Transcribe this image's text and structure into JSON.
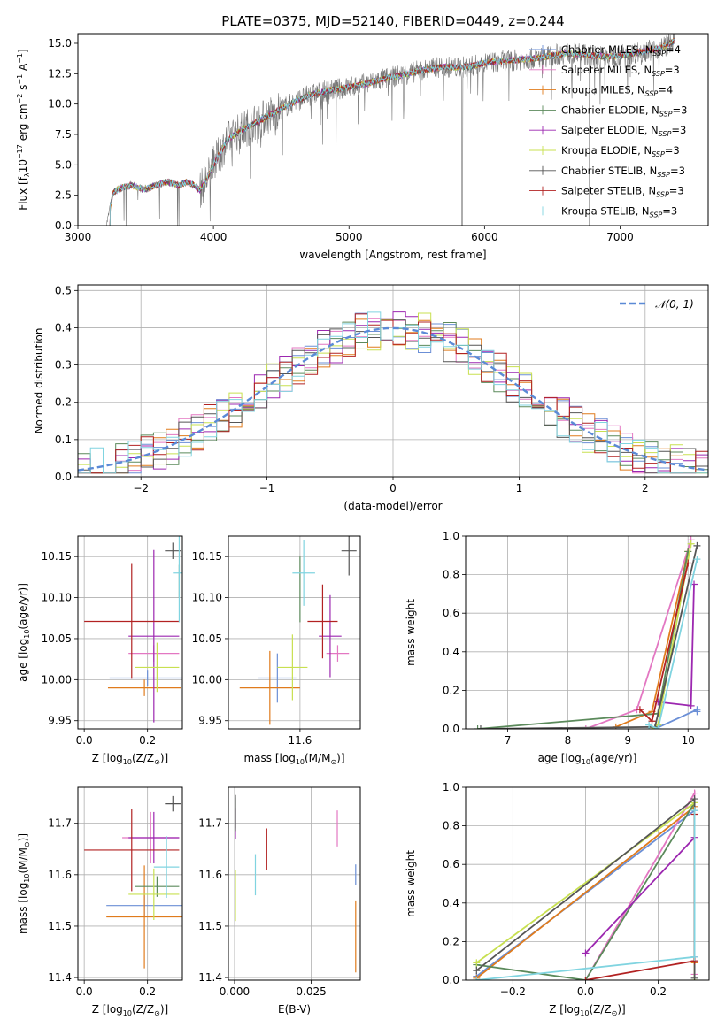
{
  "figure": {
    "title": "PLATE=0375, MJD=52140, FIBERID=0449, z=0.244"
  },
  "models": [
    {
      "name": "Chabrier MILES",
      "nssp": "4",
      "color": "#6b8fd6"
    },
    {
      "name": "Salpeter MILES",
      "nssp": "3",
      "color": "#e377c2"
    },
    {
      "name": "Kroupa MILES",
      "nssp": "4",
      "color": "#e07b1c"
    },
    {
      "name": "Chabrier ELODIE",
      "nssp": "3",
      "color": "#5b8a5b"
    },
    {
      "name": "Salpeter ELODIE",
      "nssp": "3",
      "color": "#9c27b0"
    },
    {
      "name": "Kroupa ELODIE",
      "nssp": "3",
      "color": "#c8e050"
    },
    {
      "name": "Chabrier STELIB",
      "nssp": "3",
      "color": "#555555"
    },
    {
      "name": "Salpeter STELIB",
      "nssp": "3",
      "color": "#b22222"
    },
    {
      "name": "Kroupa STELIB",
      "nssp": "3",
      "color": "#80d4e0"
    }
  ],
  "chart_data": [
    {
      "id": "spectrum",
      "type": "line",
      "xlabel": "wavelength [Angstrom, rest frame]",
      "ylabel": "Flux [f",
      "ylabel_sub": "λ",
      "ylabel_mid": "10",
      "ylabel_sup1": "−17",
      "ylabel_mid2": " erg cm",
      "ylabel_sup2": "−2",
      "ylabel_mid3": " s",
      "ylabel_sup3": "−1",
      "ylabel_mid4": " A",
      "ylabel_sup4": "−1",
      "ylabel_end": "]",
      "xlim": [
        3000,
        7650
      ],
      "ylim": [
        0,
        15.8
      ],
      "xticks": [
        3000,
        4000,
        5000,
        6000,
        7000
      ],
      "yticks": [
        0.0,
        2.5,
        5.0,
        7.5,
        10.0,
        12.5,
        15.0
      ],
      "legend_position": "right",
      "model_curve": {
        "x": [
          3210,
          3260,
          3300,
          3350,
          3400,
          3450,
          3500,
          3550,
          3600,
          3650,
          3700,
          3750,
          3800,
          3850,
          3900,
          3950,
          4000,
          4100,
          4200,
          4300,
          4400,
          4500,
          4600,
          4700,
          4800,
          4900,
          5000,
          5100,
          5200,
          5300,
          5400,
          5500,
          5600,
          5700,
          5800,
          5900,
          6000,
          6100,
          6200,
          6300,
          6400,
          6500,
          6600,
          6700,
          6800,
          6900,
          7000,
          7100,
          7200,
          7300,
          7400
        ],
        "y": [
          0.0,
          2.7,
          3.0,
          3.2,
          3.3,
          3.1,
          3.0,
          3.2,
          3.4,
          3.6,
          3.5,
          3.3,
          3.6,
          3.4,
          2.9,
          3.8,
          5.0,
          7.0,
          7.8,
          8.4,
          9.0,
          9.6,
          10.2,
          10.7,
          11.0,
          11.2,
          11.4,
          11.6,
          11.9,
          12.2,
          12.4,
          12.7,
          12.9,
          13.1,
          13.0,
          13.1,
          13.4,
          13.5,
          13.6,
          13.7,
          13.8,
          14.0,
          14.2,
          14.1,
          14.0,
          13.9,
          14.0,
          14.2,
          14.4,
          14.6,
          15.2
        ]
      }
    },
    {
      "id": "residuals",
      "type": "bar",
      "xlabel": "(data-model)/error",
      "ylabel": "Normed distribution",
      "xlim": [
        -2.5,
        2.5
      ],
      "ylim": [
        0,
        0.515
      ],
      "xticks": [
        -2,
        -1,
        0,
        1,
        2
      ],
      "yticks": [
        0.0,
        0.1,
        0.2,
        0.3,
        0.4,
        0.5
      ],
      "legend": "𝒩(0, 1)",
      "legend_position": "top-right",
      "grid": true
    },
    {
      "id": "age-vs-Z",
      "type": "scatter",
      "xlabel": "Z [log",
      "xlabel_sub": "10",
      "xlabel_end": "(Z/Z",
      "xlabel_tail": ")]",
      "ylabel": "age  [log",
      "ylabel_sub": "10",
      "ylabel_end": "(age/yr)]",
      "xlim": [
        -0.02,
        0.31
      ],
      "ylim": [
        9.94,
        10.175
      ],
      "xticks": [
        0.0,
        0.2
      ],
      "yticks": [
        9.95,
        10.0,
        10.05,
        10.1,
        10.15
      ],
      "grid": true,
      "points": [
        {
          "model": 0,
          "x": 0.2,
          "xerr": 0.12,
          "y": 10.002,
          "yerr": 0.01
        },
        {
          "model": 1,
          "x": 0.22,
          "xerr": 0.08,
          "y": 10.032,
          "yerr": 0.01
        },
        {
          "model": 2,
          "x": 0.19,
          "xerr": 0.115,
          "y": 9.99,
          "yerr": 0.01
        },
        {
          "model": 3,
          "x": 0.3,
          "xerr": 0.0,
          "y": 10.12,
          "yerr": 0.02
        },
        {
          "model": 4,
          "x": 0.22,
          "xerr": 0.08,
          "y": 10.053,
          "yerr": 0.105
        },
        {
          "model": 5,
          "x": 0.23,
          "xerr": 0.07,
          "y": 10.015,
          "yerr": 0.03
        },
        {
          "model": 6,
          "x": 0.28,
          "xerr": 0.025,
          "y": 10.157,
          "yerr": 0.01
        },
        {
          "model": 7,
          "x": 0.15,
          "xerr": 0.15,
          "y": 10.071,
          "yerr": 0.07
        },
        {
          "model": 8,
          "x": 0.3,
          "xerr": 0.02,
          "y": 10.13,
          "yerr": 0.06
        }
      ]
    },
    {
      "id": "age-vs-mass",
      "type": "scatter",
      "xlabel": "mass [log",
      "xlabel_sub": "10",
      "xlabel_end": "(M/M",
      "xlabel_tail": ")]",
      "ylabel": "",
      "xlim": [
        11.41,
        11.76
      ],
      "ylim": [
        9.94,
        10.175
      ],
      "xticks": [
        11.4,
        11.6
      ],
      "yticks": [
        9.95,
        10.0,
        10.05,
        10.1,
        10.15
      ],
      "grid": true,
      "points": [
        {
          "model": 0,
          "x": 11.54,
          "xerr": 0.05,
          "y": 10.002,
          "yerr": 0.03
        },
        {
          "model": 1,
          "x": 11.7,
          "xerr": 0.03,
          "y": 10.032,
          "yerr": 0.01
        },
        {
          "model": 2,
          "x": 11.52,
          "xerr": 0.08,
          "y": 9.99,
          "yerr": 0.045
        },
        {
          "model": 3,
          "x": 11.6,
          "xerr": 0.0,
          "y": 10.11,
          "yerr": 0.04
        },
        {
          "model": 4,
          "x": 11.68,
          "xerr": 0.03,
          "y": 10.053,
          "yerr": 0.05
        },
        {
          "model": 5,
          "x": 11.58,
          "xerr": 0.04,
          "y": 10.015,
          "yerr": 0.04
        },
        {
          "model": 6,
          "x": 11.73,
          "xerr": 0.02,
          "y": 10.157,
          "yerr": 0.03
        },
        {
          "model": 7,
          "x": 11.66,
          "xerr": 0.04,
          "y": 10.071,
          "yerr": 0.045
        },
        {
          "model": 8,
          "x": 11.61,
          "xerr": 0.03,
          "y": 10.13,
          "yerr": 0.04
        }
      ]
    },
    {
      "id": "weight-vs-age",
      "type": "line",
      "xlabel": "age  [log",
      "xlabel_sub": "10",
      "xlabel_end": "(age/yr)]",
      "ylabel": "mass weight",
      "xlim": [
        6.3,
        10.35
      ],
      "ylim": [
        0,
        1.0
      ],
      "xticks": [
        7,
        8,
        9,
        10
      ],
      "yticks": [
        0.0,
        0.2,
        0.4,
        0.6,
        0.8,
        1.0
      ],
      "grid": true,
      "series": [
        {
          "model": 0,
          "x": [
            9.45,
            10.15,
            10.15
          ],
          "y": [
            0.0,
            0.1,
            0.09
          ]
        },
        {
          "model": 1,
          "x": [
            8.3,
            9.15,
            10.05
          ],
          "y": [
            0.0,
            0.1,
            0.98
          ]
        },
        {
          "model": 2,
          "x": [
            8.8,
            9.4,
            10.0
          ],
          "y": [
            0.01,
            0.09,
            0.92
          ]
        },
        {
          "model": 3,
          "x": [
            6.5,
            9.5,
            10.0
          ],
          "y": [
            0.0,
            0.08,
            0.92
          ]
        },
        {
          "model": 4,
          "x": [
            9.5,
            10.05,
            10.1
          ],
          "y": [
            0.14,
            0.12,
            0.75
          ]
        },
        {
          "model": 5,
          "x": [
            9.4,
            9.5,
            10.05
          ],
          "y": [
            0.0,
            0.02,
            0.96
          ]
        },
        {
          "model": 6,
          "x": [
            6.55,
            9.45,
            10.15
          ],
          "y": [
            0.0,
            0.01,
            0.95
          ]
        },
        {
          "model": 7,
          "x": [
            9.2,
            9.4,
            10.0
          ],
          "y": [
            0.1,
            0.04,
            0.86
          ]
        },
        {
          "model": 8,
          "x": [
            9.35,
            9.5,
            10.15
          ],
          "y": [
            0.02,
            0.0,
            0.88
          ]
        }
      ]
    },
    {
      "id": "mass-vs-Z",
      "type": "scatter",
      "xlabel": "Z [log",
      "xlabel_sub": "10",
      "xlabel_end": "(Z/Z",
      "xlabel_tail": ")]",
      "ylabel": "mass [log",
      "ylabel_sub": "10",
      "ylabel_end": "(M/M",
      "ylabel_tail": ")]",
      "xlim": [
        -0.02,
        0.31
      ],
      "ylim": [
        11.395,
        11.77
      ],
      "xticks": [
        0.0,
        0.2
      ],
      "yticks": [
        11.4,
        11.5,
        11.6,
        11.7
      ],
      "grid": true,
      "points": [
        {
          "model": 0,
          "x": 0.19,
          "xerr": 0.12,
          "y": 11.54,
          "yerr": 0.02
        },
        {
          "model": 1,
          "x": 0.21,
          "xerr": 0.09,
          "y": 11.672,
          "yerr": 0.05
        },
        {
          "model": 2,
          "x": 0.19,
          "xerr": 0.12,
          "y": 11.518,
          "yerr": 0.1
        },
        {
          "model": 3,
          "x": 0.23,
          "xerr": 0.07,
          "y": 11.577,
          "yerr": 0.02
        },
        {
          "model": 4,
          "x": 0.22,
          "xerr": 0.08,
          "y": 11.672,
          "yerr": 0.05
        },
        {
          "model": 5,
          "x": 0.22,
          "xerr": 0.08,
          "y": 11.562,
          "yerr": 0.05
        },
        {
          "model": 6,
          "x": 0.28,
          "xerr": 0.025,
          "y": 11.738,
          "yerr": 0.015
        },
        {
          "model": 7,
          "x": 0.15,
          "xerr": 0.15,
          "y": 11.648,
          "yerr": 0.08
        },
        {
          "model": 8,
          "x": 0.26,
          "xerr": 0.04,
          "y": 11.615,
          "yerr": 0.06
        }
      ]
    },
    {
      "id": "mass-vs-ebv",
      "type": "scatter",
      "xlabel": "E(B-V)",
      "ylabel": "",
      "xlim": [
        -0.002,
        0.041
      ],
      "ylim": [
        11.395,
        11.77
      ],
      "xticks": [
        0.0,
        0.025
      ],
      "yticks": [
        11.4,
        11.5,
        11.6,
        11.7
      ],
      "grid": true,
      "points": [
        {
          "model": 0,
          "x": 0.0395,
          "xerr": 0,
          "y": 11.6,
          "yerr": 0.02
        },
        {
          "model": 1,
          "x": 0.0335,
          "xerr": 0,
          "y": 11.69,
          "yerr": 0.035
        },
        {
          "model": 2,
          "x": 0.0395,
          "xerr": 0,
          "y": 11.48,
          "yerr": 0.07
        },
        {
          "model": 3,
          "x": 0.0003,
          "xerr": 0,
          "y": 11.72,
          "yerr": 0.03
        },
        {
          "model": 4,
          "x": 0.0003,
          "xerr": 0,
          "y": 11.7,
          "yerr": 0.03
        },
        {
          "model": 5,
          "x": 0.0003,
          "xerr": 0,
          "y": 11.56,
          "yerr": 0.05
        },
        {
          "model": 6,
          "x": 0.0003,
          "xerr": 0,
          "y": 11.72,
          "yerr": 0.035
        },
        {
          "model": 7,
          "x": 0.0105,
          "xerr": 0,
          "y": 11.65,
          "yerr": 0.04
        },
        {
          "model": 8,
          "x": 0.0068,
          "xerr": 0,
          "y": 11.6,
          "yerr": 0.04
        }
      ]
    },
    {
      "id": "weight-vs-Z",
      "type": "line",
      "xlabel": "Z [log",
      "xlabel_sub": "10",
      "xlabel_end": "(Z/Z",
      "xlabel_tail": ")]",
      "ylabel": "mass weight",
      "xlim": [
        -0.33,
        0.34
      ],
      "ylim": [
        0,
        1.0
      ],
      "xticks": [
        -0.2,
        0.0,
        0.2
      ],
      "yticks": [
        0.0,
        0.2,
        0.4,
        0.6,
        0.8,
        1.0
      ],
      "grid": true,
      "series": [
        {
          "model": 0,
          "x": [
            -0.3,
            0.3,
            0.3
          ],
          "y": [
            0.02,
            0.88,
            0.1
          ]
        },
        {
          "model": 1,
          "x": [
            0.0,
            0.3,
            0.3
          ],
          "y": [
            0.0,
            0.97,
            0.03
          ]
        },
        {
          "model": 2,
          "x": [
            -0.3,
            0.3,
            0.3
          ],
          "y": [
            0.01,
            0.9,
            0.09
          ]
        },
        {
          "model": 3,
          "x": [
            -0.3,
            0.0,
            0.3
          ],
          "y": [
            0.08,
            0.0,
            0.92
          ]
        },
        {
          "model": 4,
          "x": [
            0.0,
            0.3,
            0.3
          ],
          "y": [
            0.14,
            0.74,
            0.12
          ]
        },
        {
          "model": 5,
          "x": [
            -0.3,
            0.3,
            0.3
          ],
          "y": [
            0.09,
            0.92,
            0.0
          ]
        },
        {
          "model": 6,
          "x": [
            -0.3,
            0.3,
            0.3
          ],
          "y": [
            0.05,
            0.94,
            0.01
          ]
        },
        {
          "model": 7,
          "x": [
            0.0,
            0.3,
            0.3
          ],
          "y": [
            0.0,
            0.1,
            0.86
          ]
        },
        {
          "model": 8,
          "x": [
            -0.3,
            0.3,
            0.3
          ],
          "y": [
            0.0,
            0.12,
            0.88
          ]
        }
      ]
    }
  ]
}
